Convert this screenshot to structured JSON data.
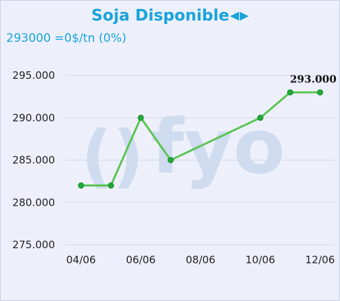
{
  "header": {
    "title": "Soja Disponible",
    "prev_arrow": "◀",
    "next_arrow": "▶",
    "subtitle": "293000 =0$/tn (0%)"
  },
  "watermark": {
    "text": "fyo",
    "paren": "()"
  },
  "colors": {
    "title": "#1aa3dc",
    "line": "#5cc456",
    "marker": "#23a83a",
    "background": "#edf0fa"
  },
  "chart_data": {
    "type": "line",
    "x": [
      "2024-06-04",
      "2024-06-05",
      "2024-06-06",
      "2024-06-07",
      "2024-06-10",
      "2024-06-11",
      "2024-06-12"
    ],
    "values": [
      282000,
      282000,
      290000,
      285000,
      290000,
      293000,
      293000
    ],
    "xtick_labels": [
      "04/06",
      "06/06",
      "08/06",
      "10/06",
      "12/06"
    ],
    "ytick_labels": [
      "295.000",
      "290.000",
      "285.000",
      "280.000",
      "275.000"
    ],
    "yticks": [
      295000,
      290000,
      285000,
      280000,
      275000
    ],
    "ylim": [
      275000,
      295000
    ],
    "data_labels": [
      {
        "point_index": 6,
        "text": "293.000"
      }
    ],
    "grid": "horizontal"
  }
}
